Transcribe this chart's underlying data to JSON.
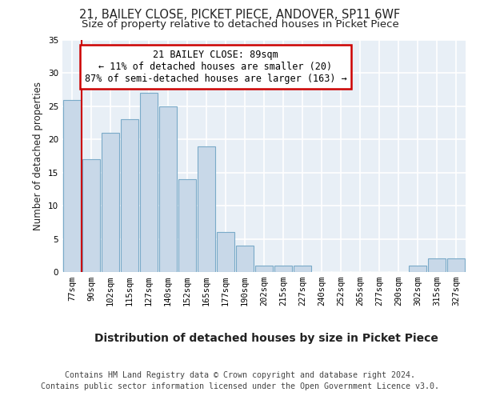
{
  "title_line1": "21, BAILEY CLOSE, PICKET PIECE, ANDOVER, SP11 6WF",
  "title_line2": "Size of property relative to detached houses in Picket Piece",
  "xlabel": "Distribution of detached houses by size in Picket Piece",
  "ylabel": "Number of detached properties",
  "categories": [
    "77sqm",
    "90sqm",
    "102sqm",
    "115sqm",
    "127sqm",
    "140sqm",
    "152sqm",
    "165sqm",
    "177sqm",
    "190sqm",
    "202sqm",
    "215sqm",
    "227sqm",
    "240sqm",
    "252sqm",
    "265sqm",
    "277sqm",
    "290sqm",
    "302sqm",
    "315sqm",
    "327sqm"
  ],
  "values": [
    26,
    17,
    21,
    23,
    27,
    25,
    14,
    19,
    6,
    4,
    1,
    1,
    1,
    0,
    0,
    0,
    0,
    0,
    1,
    2,
    2
  ],
  "bar_color": "#c8d8e8",
  "bar_edge_color": "#7aaac8",
  "highlight_bar_index": 1,
  "highlight_color": "#cc0000",
  "annotation_text": "21 BAILEY CLOSE: 89sqm\n← 11% of detached houses are smaller (20)\n87% of semi-detached houses are larger (163) →",
  "annotation_box_color": "#ffffff",
  "annotation_box_edge": "#cc0000",
  "ylim": [
    0,
    35
  ],
  "yticks": [
    0,
    5,
    10,
    15,
    20,
    25,
    30,
    35
  ],
  "background_color": "#e8eff6",
  "grid_color": "#ffffff",
  "footer_line1": "Contains HM Land Registry data © Crown copyright and database right 2024.",
  "footer_line2": "Contains public sector information licensed under the Open Government Licence v3.0.",
  "title_fontsize": 10.5,
  "subtitle_fontsize": 9.5,
  "xlabel_fontsize": 10,
  "ylabel_fontsize": 8.5,
  "tick_fontsize": 7.5,
  "annotation_fontsize": 8.5,
  "footer_fontsize": 7.2
}
